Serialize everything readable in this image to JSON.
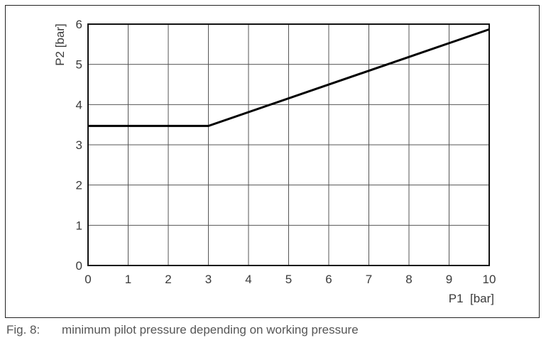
{
  "chart_data": {
    "type": "line",
    "title": "",
    "xlabel": "P1  [bar]",
    "ylabel": "P2 [bar]",
    "xlim": [
      0,
      10
    ],
    "ylim": [
      0,
      6
    ],
    "x_ticks": [
      "0",
      "1",
      "2",
      "3",
      "4",
      "5",
      "6",
      "7",
      "8",
      "9",
      "10"
    ],
    "y_ticks": [
      "0",
      "1",
      "2",
      "3",
      "4",
      "5",
      "6"
    ],
    "grid": true,
    "legend": null,
    "series": [
      {
        "name": "minimum pilot pressure",
        "x": [
          0,
          3,
          10
        ],
        "y": [
          3.47,
          3.47,
          5.87
        ]
      }
    ]
  },
  "caption": {
    "number": "Fig. 8:",
    "text": "minimum pilot pressure depending on working pressure"
  }
}
